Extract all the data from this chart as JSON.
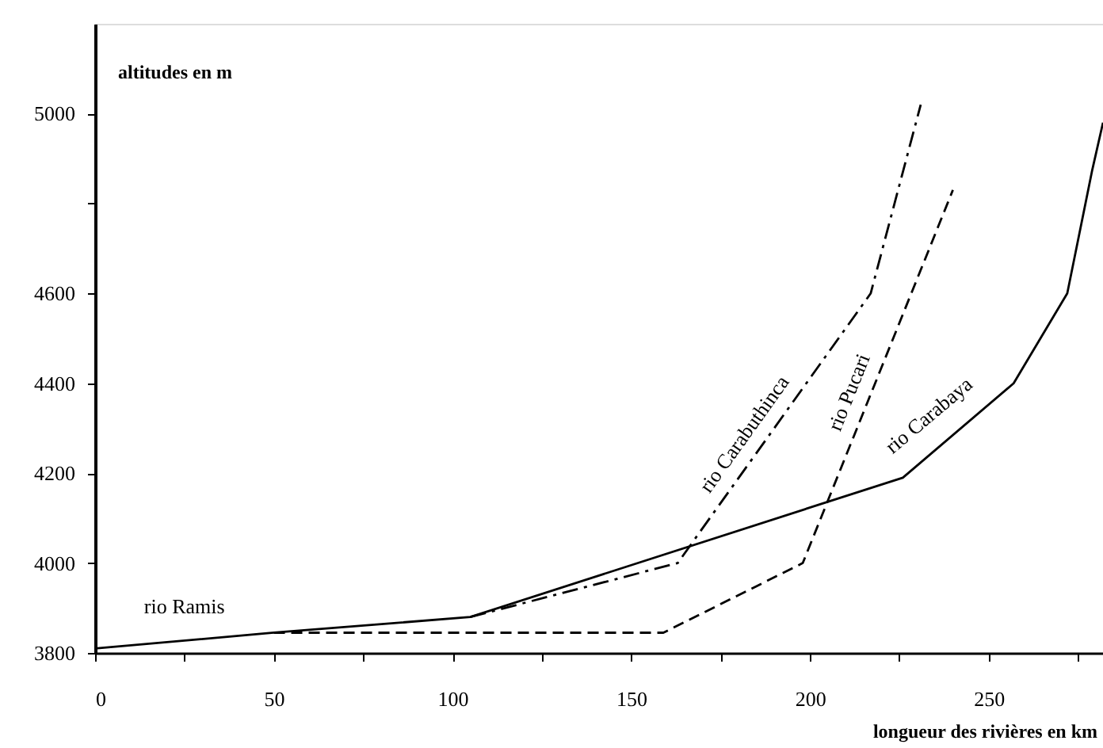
{
  "chart_data": {
    "type": "line",
    "xlabel": "longueur des rivières en km",
    "ylabel": "altitudes en m",
    "series": [
      {
        "name": "rio Ramis",
        "color": "#000000",
        "line_style": "solid",
        "x": [
          0,
          50,
          105,
          226,
          257,
          272,
          279,
          282
        ],
        "values": [
          3810,
          3845,
          3880,
          4190,
          4400,
          4600,
          4875,
          4980
        ]
      },
      {
        "name": "rio Carabuthinca",
        "color": "#000000",
        "line_style": "dashdot",
        "x": [
          105,
          163,
          217,
          231
        ],
        "values": [
          3880,
          4000,
          4600,
          5020
        ]
      },
      {
        "name": "rio Pucari",
        "color": "#000000",
        "line_style": "dashed",
        "x": [
          50,
          159,
          198,
          240
        ],
        "values": [
          3845,
          3845,
          4000,
          4830
        ]
      }
    ],
    "annotations": [
      {
        "text": "rio Carabaya",
        "x": 241.5,
        "y": 4295
      }
    ],
    "xlim": [
      0,
      282
    ],
    "ylim": [
      3800,
      5200
    ],
    "xticks": [
      0,
      {
        "value": 25,
        "label": null
      },
      50,
      {
        "value": 75,
        "label": null
      },
      100,
      {
        "value": 125,
        "label": null
      },
      150,
      {
        "value": 175,
        "label": null
      },
      200,
      {
        "value": 225,
        "label": null
      },
      250,
      {
        "value": 275,
        "label": null
      }
    ],
    "yticks": [
      3800,
      4000,
      4200,
      4400,
      4600,
      {
        "value": 4800,
        "label": null
      },
      5000
    ],
    "grid": false,
    "marker": "none"
  }
}
